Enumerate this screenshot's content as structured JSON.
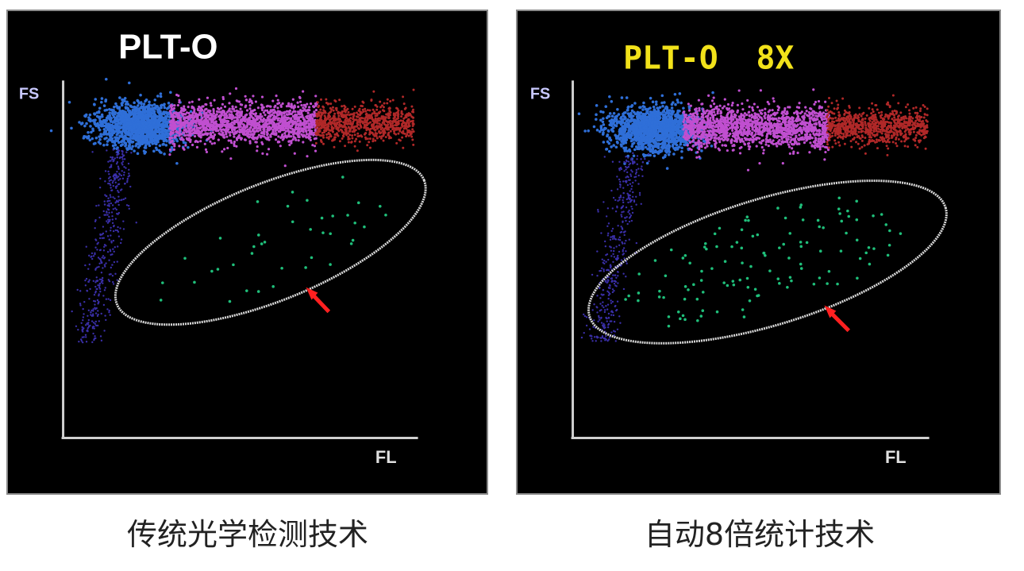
{
  "chart_data": [
    {
      "type": "scatter",
      "title": "PLT-O",
      "title_color": "#ffffff",
      "ylabel": "FS",
      "xlabel": "FL",
      "caption": "传统光学检测技术",
      "grid": false,
      "region": "ellipse",
      "region_color": "#d8d8d8",
      "arrow_color": "#ff2020",
      "series": [
        {
          "color": "#2f6fd8",
          "cluster": "blue"
        },
        {
          "color": "#c04fd0",
          "cluster": "magenta"
        },
        {
          "color": "#b02828",
          "cluster": "red"
        },
        {
          "color": "#3a2fa8",
          "cluster": "tail"
        },
        {
          "color": "#1fbf7a",
          "cluster": "gated"
        }
      ],
      "gated_event_density": "low"
    },
    {
      "type": "scatter",
      "title": "PLT-O  8X",
      "title_color": "#f2e21a",
      "ylabel": "FS",
      "xlabel": "FL",
      "caption": "自动8倍统计技术",
      "grid": false,
      "region": "ellipse",
      "region_color": "#d8d8d8",
      "arrow_color": "#ff2020",
      "series": [
        {
          "color": "#2f6fd8",
          "cluster": "blue"
        },
        {
          "color": "#c04fd0",
          "cluster": "magenta"
        },
        {
          "color": "#b02828",
          "cluster": "red"
        },
        {
          "color": "#3a2fa8",
          "cluster": "tail"
        },
        {
          "color": "#1fbf7a",
          "cluster": "gated"
        }
      ],
      "gated_event_density": "high"
    }
  ]
}
